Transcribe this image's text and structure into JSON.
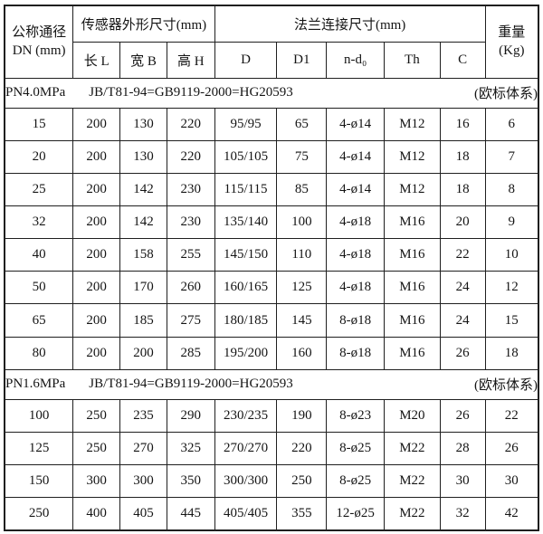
{
  "table": {
    "header": {
      "dn_line1": "公称通径",
      "dn_line2": "DN (mm)",
      "group_sensor": "传感器外形尺寸(mm)",
      "group_flange": "法兰连接尺寸(mm)",
      "weight_line1": "重量",
      "weight_line2": "(Kg)",
      "sub_cols": [
        "长 L",
        "宽 B",
        "高 H",
        "D",
        "D1",
        "n-d₀",
        "Th",
        "C"
      ]
    },
    "sections": [
      {
        "pressure": "PN4.0MPa",
        "standard": "JB/T81-94=GB9119-2000=HG20593",
        "note": "(欧标体系)",
        "rows": [
          [
            "15",
            "200",
            "130",
            "220",
            "95/95",
            "65",
            "4-ø14",
            "M12",
            "16",
            "6"
          ],
          [
            "20",
            "200",
            "130",
            "220",
            "105/105",
            "75",
            "4-ø14",
            "M12",
            "18",
            "7"
          ],
          [
            "25",
            "200",
            "142",
            "230",
            "115/115",
            "85",
            "4-ø14",
            "M12",
            "18",
            "8"
          ],
          [
            "32",
            "200",
            "142",
            "230",
            "135/140",
            "100",
            "4-ø18",
            "M16",
            "20",
            "9"
          ],
          [
            "40",
            "200",
            "158",
            "255",
            "145/150",
            "110",
            "4-ø18",
            "M16",
            "22",
            "10"
          ],
          [
            "50",
            "200",
            "170",
            "260",
            "160/165",
            "125",
            "4-ø18",
            "M16",
            "24",
            "12"
          ],
          [
            "65",
            "200",
            "185",
            "275",
            "180/185",
            "145",
            "8-ø18",
            "M16",
            "24",
            "15"
          ],
          [
            "80",
            "200",
            "200",
            "285",
            "195/200",
            "160",
            "8-ø18",
            "M16",
            "26",
            "18"
          ]
        ]
      },
      {
        "pressure": "PN1.6MPa",
        "standard": "JB/T81-94=GB9119-2000=HG20593",
        "note": "(欧标体系)",
        "rows": [
          [
            "100",
            "250",
            "235",
            "290",
            "230/235",
            "190",
            "8-ø23",
            "M20",
            "26",
            "22"
          ],
          [
            "125",
            "250",
            "270",
            "325",
            "270/270",
            "220",
            "8-ø25",
            "M22",
            "28",
            "26"
          ],
          [
            "150",
            "300",
            "300",
            "350",
            "300/300",
            "250",
            "8-ø25",
            "M22",
            "30",
            "30"
          ],
          [
            "250",
            "400",
            "405",
            "445",
            "405/405",
            "355",
            "12-ø25",
            "M22",
            "32",
            "42"
          ]
        ]
      }
    ]
  }
}
